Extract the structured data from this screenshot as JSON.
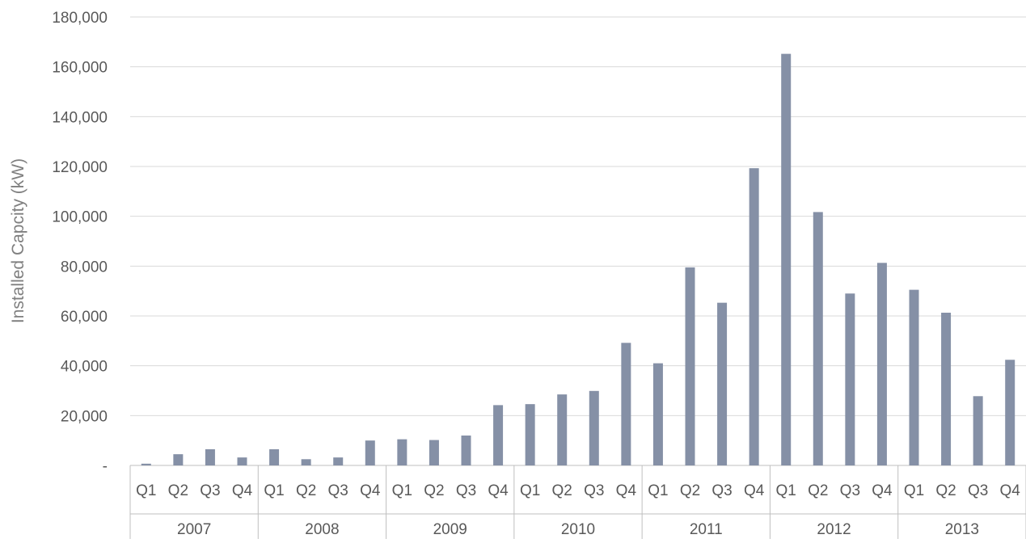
{
  "chart_data": {
    "type": "bar",
    "title": "",
    "xlabel": "",
    "ylabel": "Installed Capcity (kW)",
    "ylim": [
      0,
      180000
    ],
    "yticks": [
      0,
      20000,
      40000,
      60000,
      80000,
      100000,
      120000,
      140000,
      160000,
      180000
    ],
    "ytick_labels": [
      "-",
      "20,000",
      "40,000",
      "60,000",
      "80,000",
      "100,000",
      "120,000",
      "140,000",
      "160,000",
      "180,000"
    ],
    "grid": true,
    "legend": "none",
    "quarter_labels": [
      "Q1",
      "Q2",
      "Q3",
      "Q4"
    ],
    "years": [
      "2007",
      "2008",
      "2009",
      "2010",
      "2011",
      "2012",
      "2013"
    ],
    "categories": [
      "2007 Q1",
      "2007 Q2",
      "2007 Q3",
      "2007 Q4",
      "2008 Q1",
      "2008 Q2",
      "2008 Q3",
      "2008 Q4",
      "2009 Q1",
      "2009 Q2",
      "2009 Q3",
      "2009 Q4",
      "2010 Q1",
      "2010 Q2",
      "2010 Q3",
      "2010 Q4",
      "2011 Q1",
      "2011 Q2",
      "2011 Q3",
      "2011 Q4",
      "2012 Q1",
      "2012 Q2",
      "2012 Q3",
      "2012 Q4",
      "2013 Q1",
      "2013 Q2",
      "2013 Q3",
      "2013 Q4"
    ],
    "values": [
      700,
      4500,
      6500,
      3200,
      6500,
      2500,
      3200,
      10000,
      10500,
      10200,
      12000,
      24200,
      24600,
      28500,
      29900,
      49200,
      41000,
      79500,
      65300,
      119300,
      165200,
      101700,
      69000,
      81300,
      70500,
      61300,
      27800,
      42400
    ],
    "colors": {
      "bar": "#8590a6",
      "grid": "#d9d9d9",
      "axis": "#bfbfbf",
      "text": "#595959",
      "ylabel": "#7f7f7f"
    }
  }
}
